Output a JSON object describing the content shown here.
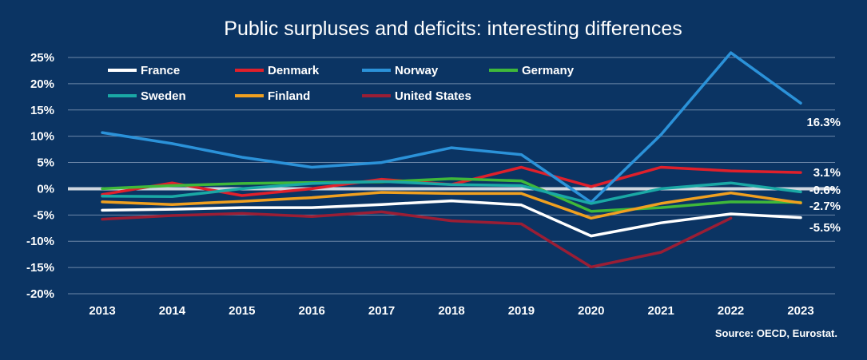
{
  "chart_data": {
    "type": "line",
    "title": "Public surpluses and deficits: interesting differences",
    "source": "Source: OECD, Eurostat.",
    "xlabel": "",
    "ylabel": "",
    "x": [
      "2013",
      "2014",
      "2015",
      "2016",
      "2017",
      "2018",
      "2019",
      "2020",
      "2021",
      "2022",
      "2023"
    ],
    "y_ticks": [
      "25%",
      "20%",
      "15%",
      "10%",
      "5%",
      "0%",
      "-5%",
      "-10%",
      "-15%",
      "-20%"
    ],
    "ylim": [
      -20,
      25
    ],
    "grid": true,
    "legend_position": "top-left",
    "zero_line_color": "#cfd6df",
    "series": [
      {
        "name": "France",
        "color": "#ffffff",
        "values": [
          -4.1,
          -3.9,
          -3.6,
          -3.6,
          -3.0,
          -2.3,
          -3.1,
          -9.0,
          -6.5,
          -4.8,
          -5.5
        ]
      },
      {
        "name": "Denmark",
        "color": "#e0202b",
        "values": [
          -1.1,
          1.1,
          -1.3,
          0.0,
          1.8,
          0.8,
          4.1,
          0.4,
          4.1,
          3.4,
          3.1
        ]
      },
      {
        "name": "Norway",
        "color": "#2b92d9",
        "values": [
          10.7,
          8.6,
          6.0,
          4.1,
          5.0,
          7.8,
          6.5,
          -2.6,
          10.3,
          25.9,
          16.3
        ]
      },
      {
        "name": "Germany",
        "color": "#3fb83a",
        "values": [
          0.0,
          0.6,
          1.0,
          1.2,
          1.3,
          1.9,
          1.5,
          -4.3,
          -3.6,
          -2.5,
          -2.6
        ]
      },
      {
        "name": "Sweden",
        "color": "#1aa8a5",
        "values": [
          -1.4,
          -1.5,
          0.0,
          1.0,
          1.4,
          0.8,
          0.6,
          -2.8,
          0.0,
          1.1,
          -0.6
        ]
      },
      {
        "name": "Finland",
        "color": "#f0a020",
        "values": [
          -2.5,
          -3.0,
          -2.4,
          -1.7,
          -0.7,
          -0.9,
          -0.9,
          -5.6,
          -2.8,
          -0.8,
          -2.7
        ]
      },
      {
        "name": "United States",
        "color": "#9a1e35",
        "values": [
          -5.8,
          -5.1,
          -4.7,
          -5.3,
          -4.4,
          -6.1,
          -6.7,
          -14.9,
          -12.1,
          -5.6,
          null
        ]
      }
    ],
    "end_labels": [
      {
        "text": "16.3%",
        "value": 16.3
      },
      {
        "text": "3.1%",
        "value": 3.1
      },
      {
        "text": "-0.6%",
        "value": -0.6
      },
      {
        "text": "-2.7%",
        "value": -2.7
      },
      {
        "text": "-5.5%",
        "value": -5.5
      }
    ]
  }
}
